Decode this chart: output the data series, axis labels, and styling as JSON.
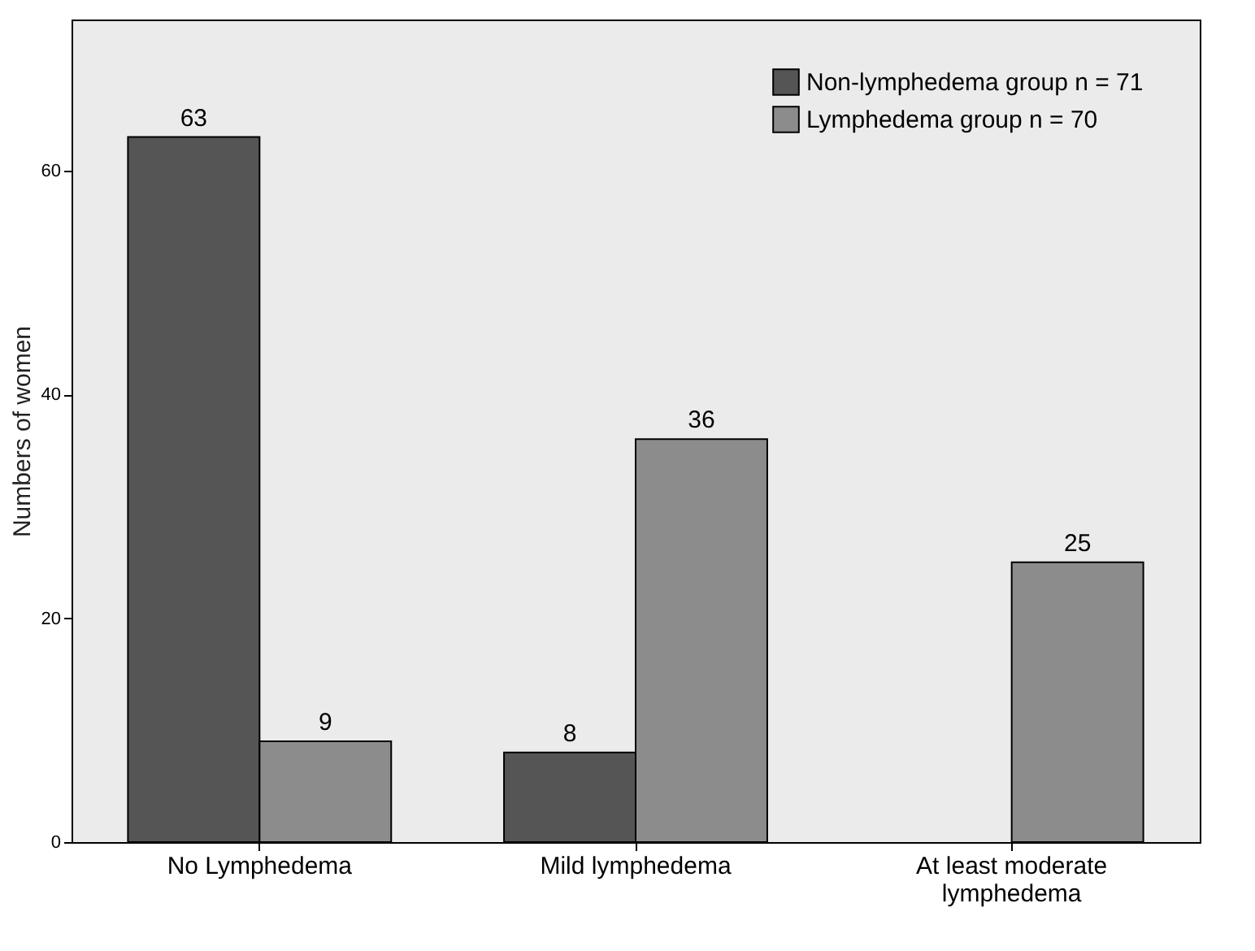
{
  "chart_data": {
    "type": "bar",
    "ylabel": "Numbers of women",
    "categories": [
      "No Lymphedema",
      "Mild lymphedema",
      "At least moderate lymphedema"
    ],
    "series": [
      {
        "name": "Non-lymphedema group  n = 71",
        "color": "#555555",
        "values": [
          63,
          8,
          null
        ]
      },
      {
        "name": "Lymphedema group  n = 70",
        "color": "#8c8c8c",
        "values": [
          9,
          36,
          25
        ]
      }
    ],
    "ylim": [
      0,
      73.5
    ],
    "yticks": [
      0,
      20,
      40,
      60
    ],
    "grid": false,
    "legend": "top right",
    "data_labels": true
  }
}
